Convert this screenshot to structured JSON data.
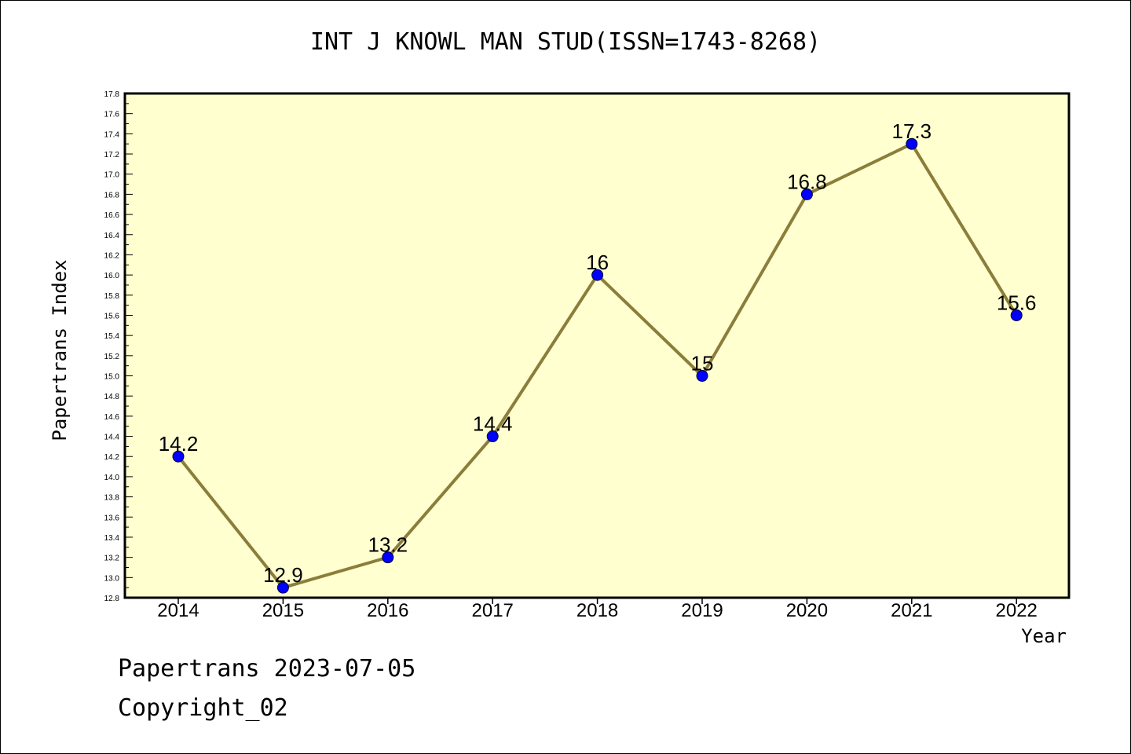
{
  "title": "INT J KNOWL MAN STUD(ISSN=1743-8268)",
  "footer": {
    "line1": "Papertrans 2023-07-05",
    "line2": "Copyright_02"
  },
  "colors": {
    "plot_background": "#ffffd0",
    "line": "#8b7d3a",
    "marker": "#0000ff",
    "axis": "#000000"
  },
  "chart_data": {
    "type": "line",
    "title": "INT J KNOWL MAN STUD(ISSN=1743-8268)",
    "xlabel": "Year",
    "ylabel": "Papertrans Index",
    "categories": [
      "2014",
      "2015",
      "2016",
      "2017",
      "2018",
      "2019",
      "2020",
      "2021",
      "2022"
    ],
    "values": [
      14.2,
      12.9,
      13.2,
      14.4,
      16,
      15,
      16.8,
      17.3,
      15.6
    ],
    "data_labels": [
      "14.2",
      "12.9",
      "13.2",
      "14.4",
      "16",
      "15",
      "16.8",
      "17.3",
      "15.6"
    ],
    "ylim": [
      12.8,
      17.8
    ],
    "yticks": [
      "12.8",
      "13.0",
      "13.2",
      "13.4",
      "13.6",
      "13.8",
      "14.0",
      "14.2",
      "14.4",
      "14.6",
      "14.8",
      "15.0",
      "15.2",
      "15.4",
      "15.6",
      "15.8",
      "16.0",
      "16.2",
      "16.4",
      "16.6",
      "16.8",
      "17.0",
      "17.2",
      "17.4",
      "17.6",
      "17.8"
    ],
    "grid": false,
    "legend": "none"
  }
}
